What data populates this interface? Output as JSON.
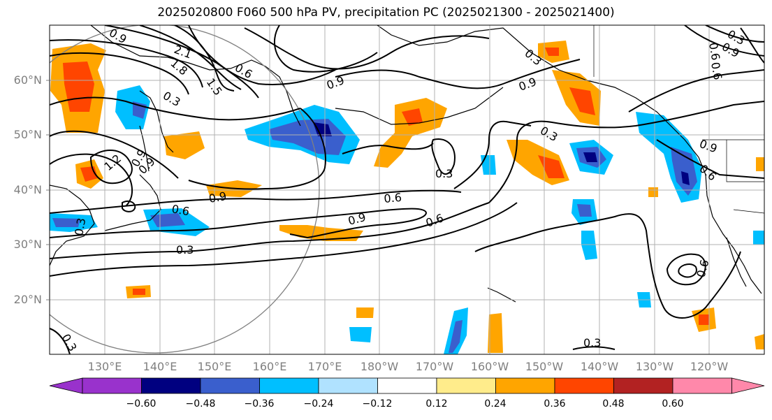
{
  "title": "2025020800 F060 500 hPa PV, precipitation PC (2025021300 - 2025021400)",
  "lat_labels": [
    "60°N",
    "50°N",
    "40°N",
    "30°N",
    "20°N"
  ],
  "lon_labels": [
    "130°E",
    "140°E",
    "150°E",
    "160°E",
    "170°E",
    "180°W",
    "170°W",
    "160°W",
    "150°W",
    "140°W",
    "130°W",
    "120°W"
  ],
  "colorbar": {
    "ticks": [
      "−0.60",
      "−0.48",
      "−0.36",
      "−0.24",
      "−0.12",
      "0.12",
      "0.24",
      "0.36",
      "0.48",
      "0.60"
    ],
    "colors": [
      "#9932cc",
      "#000080",
      "#3a5fcd",
      "#00bfff",
      "#b0e2ff",
      "#ffffff",
      "#ffec8b",
      "#ffa500",
      "#ff4500",
      "#b22222",
      "#ff88aa"
    ]
  },
  "contour_labels": [
    "2.1",
    "1.8",
    "1.5",
    "1.2",
    "0.9",
    "0.6",
    "0.3",
    "0.9",
    "0.3",
    "0.9",
    "0.6",
    "0.3",
    "0.3",
    "0.9",
    "0.6",
    "0.9",
    "0.6",
    "0.6",
    "0.3",
    "0.3",
    "0.9",
    "0.3",
    "0.6",
    "0.6",
    "0.3",
    "0.9",
    "0.9",
    "0.6",
    "0.9",
    "0.3"
  ],
  "colors": {
    "land_outline": "#000000",
    "grid": "#b0b0b0",
    "axis_label": "#7f7f7f"
  }
}
